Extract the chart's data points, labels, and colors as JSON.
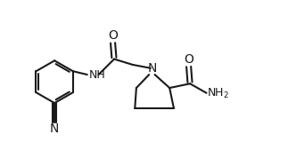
{
  "bg_color": "#ffffff",
  "line_color": "#1a1a1a",
  "line_width": 1.5,
  "font_size": 9,
  "fig_width": 3.23,
  "fig_height": 1.78,
  "xlim": [
    0,
    10
  ],
  "ylim": [
    0,
    5.5
  ]
}
